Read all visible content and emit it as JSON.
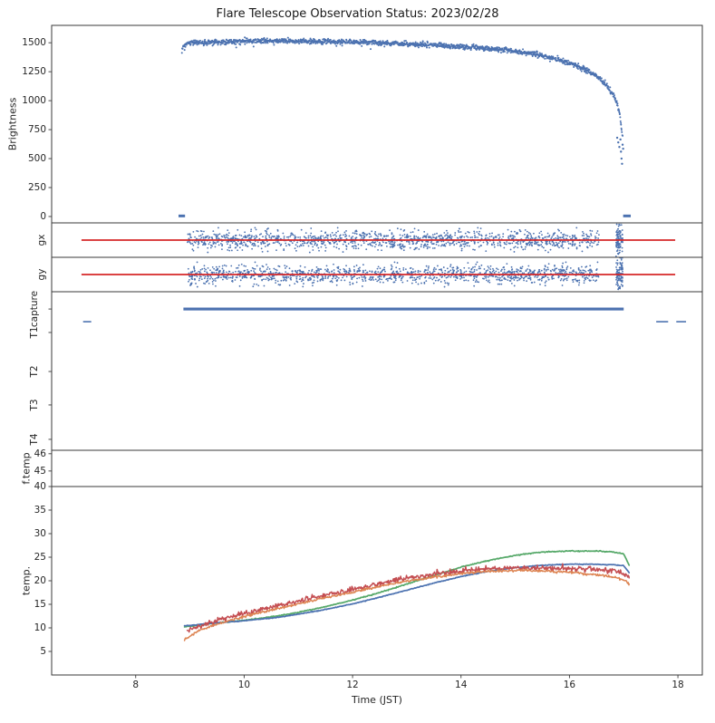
{
  "chart_data": {
    "type": "line",
    "title": "Flare Telescope Observation Status: 2023/02/28",
    "xlabel": "Time (JST)",
    "xlim": [
      6.45,
      18.45
    ],
    "xticks": [
      8,
      10,
      12,
      14,
      16,
      18
    ],
    "colors": {
      "blue": "#4c72b0",
      "red_line": "#d62728",
      "green": "#55a868",
      "red": "#c44e52",
      "orange": "#dd8452",
      "text": "#262626",
      "spine": "#3a3a3a"
    },
    "panels": [
      {
        "name": "brightness",
        "ylabel": "Brightness",
        "ylim": [
          -55,
          1650
        ],
        "yticks": [
          0,
          250,
          500,
          750,
          1000,
          1250,
          1500
        ],
        "series": [
          {
            "name": "brightness-curve",
            "type": "scatter-line",
            "color": "#4c72b0",
            "noise": 11,
            "dropout": 45,
            "dot": 1.0,
            "step": 0.0055,
            "points": [
              [
                8.85,
                1420
              ],
              [
                8.87,
                1455
              ],
              [
                8.9,
                1480
              ],
              [
                8.95,
                1495
              ],
              [
                9.1,
                1500
              ],
              [
                9.4,
                1504
              ],
              [
                9.7,
                1508
              ],
              [
                10.0,
                1512
              ],
              [
                10.2,
                1516
              ],
              [
                10.5,
                1518
              ],
              [
                10.8,
                1514
              ],
              [
                11.1,
                1514
              ],
              [
                11.4,
                1510
              ],
              [
                11.7,
                1508
              ],
              [
                12.0,
                1506
              ],
              [
                12.3,
                1502
              ],
              [
                12.6,
                1499
              ],
              [
                12.9,
                1493
              ],
              [
                13.2,
                1487
              ],
              [
                13.5,
                1480
              ],
              [
                13.8,
                1472
              ],
              [
                14.1,
                1463
              ],
              [
                14.4,
                1452
              ],
              [
                14.7,
                1441
              ],
              [
                15.0,
                1426
              ],
              [
                15.3,
                1406
              ],
              [
                15.6,
                1380
              ],
              [
                15.9,
                1344
              ],
              [
                16.1,
                1310
              ],
              [
                16.3,
                1268
              ],
              [
                16.5,
                1212
              ],
              [
                16.65,
                1155
              ],
              [
                16.8,
                1060
              ],
              [
                16.88,
                975
              ],
              [
                16.93,
                880
              ],
              [
                16.96,
                760
              ],
              [
                16.98,
                690
              ]
            ]
          },
          {
            "name": "start-end-zero-marks",
            "type": "segments",
            "color": "#4c72b0",
            "lw": 3,
            "y": 5,
            "segments": [
              [
                8.79,
                8.91
              ],
              [
                16.99,
                17.13
              ]
            ]
          },
          {
            "name": "end-outliers",
            "type": "dots",
            "color": "#4c72b0",
            "dot": 1.2,
            "points": [
              [
                16.9,
                640
              ],
              [
                16.92,
                600
              ],
              [
                16.95,
                560
              ],
              [
                16.96,
                500
              ],
              [
                16.97,
                455
              ],
              [
                16.94,
                665
              ],
              [
                16.98,
                620
              ],
              [
                16.99,
                585
              ],
              [
                16.88,
                680
              ]
            ]
          }
        ]
      },
      {
        "name": "gx",
        "ylabel": "gx",
        "ylim": [
          -20,
          20
        ],
        "yticks": [],
        "series": [
          {
            "name": "gx-noise",
            "type": "noise-band",
            "color": "#4c72b0",
            "x0": 8.95,
            "x1": 16.55,
            "n": 1300,
            "y0": 0,
            "sigma": 5.5,
            "dot": 0.9
          },
          {
            "name": "gx-end-burst",
            "type": "noise-band",
            "color": "#4c72b0",
            "x0": 16.86,
            "x1": 16.98,
            "n": 110,
            "y0": 0,
            "sigma": 10,
            "dot": 0.9
          },
          {
            "name": "gx-reference-line",
            "type": "hline",
            "color": "#d62728",
            "y": 0,
            "x0": 7.0,
            "x1": 17.95,
            "lw": 1.7
          }
        ]
      },
      {
        "name": "gy",
        "ylabel": "gy",
        "ylim": [
          -20,
          20
        ],
        "yticks": [],
        "series": [
          {
            "name": "gy-noise",
            "type": "noise-band",
            "color": "#4c72b0",
            "x0": 8.95,
            "x1": 16.55,
            "n": 1300,
            "y0": 0,
            "sigma": 5.5,
            "dot": 0.9
          },
          {
            "name": "gy-end-burst",
            "type": "noise-band",
            "color": "#4c72b0",
            "x0": 16.86,
            "x1": 16.98,
            "n": 110,
            "y0": 0,
            "sigma": 10,
            "dot": 0.9
          },
          {
            "name": "gy-reference-line",
            "type": "hline",
            "color": "#d62728",
            "y": 0,
            "x0": 7.0,
            "x1": 17.95,
            "lw": 1.7
          }
        ]
      },
      {
        "name": "capture-status",
        "ylabel": "",
        "ylim": [
          0,
          1
        ],
        "yticks": [],
        "ytick_labels": [
          {
            "label": "capture",
            "pos": 0.891
          },
          {
            "label": "T1",
            "pos": 0.743
          },
          {
            "label": "T2",
            "pos": 0.497
          },
          {
            "label": "T3",
            "pos": 0.286
          },
          {
            "label": "T4",
            "pos": 0.069
          }
        ],
        "series": [
          {
            "name": "capture-on",
            "type": "segments",
            "color": "#4c72b0",
            "lw": 3.2,
            "y": 0.891,
            "segments": [
              [
                8.88,
                17.0
              ]
            ]
          },
          {
            "name": "capture-off",
            "type": "segments",
            "color": "#4c72b0",
            "lw": 1.6,
            "y": 0.811,
            "segments": [
              [
                7.03,
                7.18
              ],
              [
                17.6,
                17.82
              ],
              [
                17.97,
                18.15
              ]
            ]
          }
        ]
      },
      {
        "name": "f-temp",
        "ylabel": "f.temp",
        "ylim": [
          44.1,
          46.2
        ],
        "yticks": [
          46,
          45
        ],
        "series": []
      },
      {
        "name": "temp",
        "ylabel": "temp.",
        "ylim": [
          0,
          40
        ],
        "yticks": [
          40,
          35,
          30,
          25,
          20,
          15,
          10,
          5
        ],
        "series": [
          {
            "name": "temp-green",
            "type": "line",
            "color": "#55a868",
            "lw": 1.7,
            "noise": 0.05,
            "points": [
              [
                8.9,
                10.2
              ],
              [
                9.3,
                10.8
              ],
              [
                10,
                11.6
              ],
              [
                10.6,
                12.5
              ],
              [
                11,
                13.3
              ],
              [
                11.5,
                14.5
              ],
              [
                12,
                15.9
              ],
              [
                12.5,
                17.5
              ],
              [
                13,
                19.3
              ],
              [
                13.5,
                21.1
              ],
              [
                14,
                22.9
              ],
              [
                14.5,
                24.3
              ],
              [
                15,
                25.4
              ],
              [
                15.5,
                26.1
              ],
              [
                16,
                26.3
              ],
              [
                16.5,
                26.3
              ],
              [
                16.8,
                26.1
              ],
              [
                17,
                25.7
              ],
              [
                17.05,
                24.6
              ],
              [
                17.1,
                23.3
              ]
            ]
          },
          {
            "name": "temp-blue",
            "type": "line",
            "color": "#4c72b0",
            "lw": 1.7,
            "noise": 0.04,
            "points": [
              [
                8.9,
                10.4
              ],
              [
                9.3,
                10.9
              ],
              [
                10,
                11.5
              ],
              [
                10.6,
                12.2
              ],
              [
                11,
                12.9
              ],
              [
                11.5,
                13.9
              ],
              [
                12,
                15.1
              ],
              [
                12.5,
                16.5
              ],
              [
                13,
                18.0
              ],
              [
                13.5,
                19.5
              ],
              [
                14,
                20.9
              ],
              [
                14.5,
                22.0
              ],
              [
                15,
                22.8
              ],
              [
                15.5,
                23.3
              ],
              [
                16,
                23.5
              ],
              [
                16.5,
                23.5
              ],
              [
                16.8,
                23.4
              ],
              [
                17,
                23.2
              ],
              [
                17.1,
                21.7
              ]
            ]
          },
          {
            "name": "temp-red",
            "type": "line",
            "color": "#c44e52",
            "lw": 1.5,
            "noise": 0.28,
            "points": [
              [
                8.95,
                9.3
              ],
              [
                9.2,
                10.6
              ],
              [
                9.6,
                11.9
              ],
              [
                10,
                13.1
              ],
              [
                10.5,
                14.4
              ],
              [
                11,
                15.7
              ],
              [
                11.5,
                17.0
              ],
              [
                12,
                18.2
              ],
              [
                12.5,
                19.4
              ],
              [
                13,
                20.5
              ],
              [
                13.5,
                21.4
              ],
              [
                14,
                22.1
              ],
              [
                14.5,
                22.5
              ],
              [
                15,
                22.7
              ],
              [
                15.5,
                22.7
              ],
              [
                16,
                22.6
              ],
              [
                16.3,
                22.5
              ],
              [
                16.6,
                22.3
              ],
              [
                16.9,
                22.0
              ],
              [
                17.05,
                21.1
              ],
              [
                17.1,
                20.6
              ]
            ]
          },
          {
            "name": "temp-orange",
            "type": "line",
            "color": "#dd8452",
            "lw": 1.5,
            "noise": 0.12,
            "points": [
              [
                8.9,
                7.6
              ],
              [
                9.2,
                9.6
              ],
              [
                9.6,
                11.1
              ],
              [
                10,
                12.4
              ],
              [
                10.5,
                13.8
              ],
              [
                11,
                15.1
              ],
              [
                11.5,
                16.4
              ],
              [
                12,
                17.6
              ],
              [
                12.5,
                18.8
              ],
              [
                13,
                19.9
              ],
              [
                13.5,
                20.8
              ],
              [
                14,
                21.5
              ],
              [
                14.5,
                22.0
              ],
              [
                15,
                22.2
              ],
              [
                15.5,
                22.1
              ],
              [
                16,
                21.8
              ],
              [
                16.5,
                21.3
              ],
              [
                16.9,
                20.6
              ],
              [
                17.05,
                19.9
              ],
              [
                17.1,
                19.3
              ]
            ]
          }
        ]
      }
    ]
  }
}
